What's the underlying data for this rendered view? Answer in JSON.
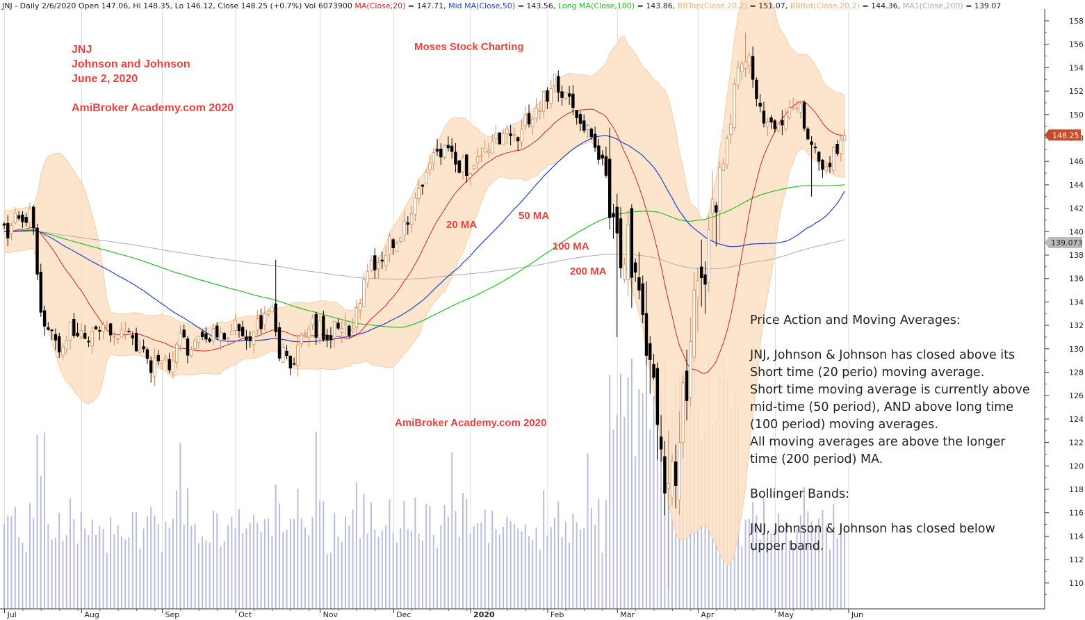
{
  "header": {
    "segments": [
      {
        "text": "JNJ - Daily 2/6/2020 Open 147.06, Hi 148.35, Lo 146.12, Close 148.25 (+0.7%) Vol 6073900 ",
        "color": "#222222"
      },
      {
        "text": "MA(Close,20)",
        "color": "#d42020"
      },
      {
        "text": " = 147.71, ",
        "color": "#222222"
      },
      {
        "text": "Mid MA(Close,50)",
        "color": "#1f3fd0"
      },
      {
        "text": " = 143.56, ",
        "color": "#222222"
      },
      {
        "text": "Long MA(Close,100)",
        "color": "#22c022"
      },
      {
        "text": " = 143.86, ",
        "color": "#222222"
      },
      {
        "text": "BBTop(Close,20,2)",
        "color": "#f0b07a"
      },
      {
        "text": " = 151.07, ",
        "color": "#222222"
      },
      {
        "text": "BBBot(Close,20,2)",
        "color": "#f0b07a"
      },
      {
        "text": " = 144.36, ",
        "color": "#222222"
      },
      {
        "text": "MA1(Close,200)",
        "color": "#aaaaaa"
      },
      {
        "text": " = 139.07",
        "color": "#222222"
      }
    ]
  },
  "annotations": {
    "ticker": "JNJ",
    "company": "Johnson and Johnson",
    "date": "June 2, 2020",
    "brand_top": "AmiBroker Academy.com 2020",
    "moses": "Moses Stock Charting",
    "brand_mid": "AmiBroker Academy.com  2020",
    "label_20": "20 MA",
    "label_50": "50 MA",
    "label_100": "100 MA",
    "label_200": "200 MA"
  },
  "commentary": {
    "lines": [
      "Price Action and Moving Averages:",
      "",
      "JNJ, Johnson & Johnson has closed above its",
      "Short time (20 perio) moving average.",
      "Short time moving average is currently above",
      "mid-time (50 period), AND above long time",
      "(100 period) moving averages.",
      "All moving averages are above the longer",
      "time (200 period) MA.",
      "",
      "Bollinger Bands:",
      "",
      "JNJ, Johnson & Johnson has closed below",
      "upper band."
    ]
  },
  "price_tags": {
    "last_close": "148.25",
    "ma200": "139.073"
  },
  "colors": {
    "ma20": "#d42020",
    "ma50": "#1f3fd0",
    "ma100": "#22c022",
    "ma200": "#aaaaaa",
    "bb_fill": "#fde0c4",
    "bb_edge": "#f5c79a",
    "candle_up": "#d08a5e",
    "candle_down": "#000000",
    "volume": "#b9bddc",
    "tag_last": "#c74a2a",
    "tag_ma200": "#bbbbbb"
  },
  "chart_data": {
    "type": "candlestick",
    "ylim": [
      108.5,
      159
    ],
    "yticks": [
      110,
      112,
      114,
      116,
      118,
      120,
      122,
      124,
      126,
      128,
      130,
      132,
      134,
      136,
      138,
      140,
      142,
      144,
      146,
      148,
      150,
      152,
      154,
      156,
      158
    ],
    "xticks": [
      "Jul",
      "Aug",
      "Sep",
      "Oct",
      "Nov",
      "Dec",
      "2020",
      "Feb",
      "Mar",
      "Apr",
      "May",
      "Jun"
    ],
    "months": [
      {
        "label": "Jul",
        "start": 0,
        "days": 21
      },
      {
        "label": "Aug",
        "start": 21,
        "days": 22
      },
      {
        "label": "Sep",
        "start": 43,
        "days": 20
      },
      {
        "label": "Oct",
        "start": 63,
        "days": 23
      },
      {
        "label": "Nov",
        "start": 86,
        "days": 20
      },
      {
        "label": "Dec",
        "start": 106,
        "days": 21
      },
      {
        "label": "2020",
        "start": 127,
        "days": 21
      },
      {
        "label": "Feb",
        "start": 148,
        "days": 19
      },
      {
        "label": "Mar",
        "start": 167,
        "days": 22
      },
      {
        "label": "Apr",
        "start": 189,
        "days": 21
      },
      {
        "label": "May",
        "start": 210,
        "days": 20
      },
      {
        "label": "Jun",
        "start": 230,
        "days": 0
      }
    ],
    "close_anchors": [
      [
        0,
        140
      ],
      [
        6,
        141.6
      ],
      [
        8,
        140.5
      ],
      [
        9,
        136
      ],
      [
        11,
        132
      ],
      [
        14,
        130
      ],
      [
        18,
        131.5
      ],
      [
        22,
        130.5
      ],
      [
        26,
        131.8
      ],
      [
        30,
        130.8
      ],
      [
        33,
        131.5
      ],
      [
        37,
        130.3
      ],
      [
        40,
        128.5
      ],
      [
        44,
        128.5
      ],
      [
        48,
        130.5
      ],
      [
        52,
        130
      ],
      [
        56,
        131
      ],
      [
        60,
        130.5
      ],
      [
        64,
        132
      ],
      [
        68,
        131
      ],
      [
        72,
        134
      ],
      [
        75,
        130
      ],
      [
        78,
        128
      ],
      [
        81,
        131.5
      ],
      [
        84,
        132
      ],
      [
        88,
        131
      ],
      [
        92,
        132.5
      ],
      [
        95,
        131
      ],
      [
        98,
        136
      ],
      [
        103,
        138
      ],
      [
        108,
        140
      ],
      [
        112,
        143
      ],
      [
        116,
        146
      ],
      [
        120,
        146.5
      ],
      [
        124,
        145.8
      ],
      [
        128,
        145.5
      ],
      [
        132,
        147
      ],
      [
        136,
        148
      ],
      [
        140,
        148.5
      ],
      [
        144,
        150
      ],
      [
        148,
        152
      ],
      [
        150,
        153
      ],
      [
        153,
        151.5
      ],
      [
        156,
        150.5
      ],
      [
        159,
        149
      ],
      [
        161,
        147.5
      ],
      [
        163,
        145.5
      ],
      [
        165,
        142.5
      ],
      [
        167,
        141
      ],
      [
        169,
        139
      ],
      [
        171,
        137
      ],
      [
        173,
        134
      ],
      [
        175,
        130
      ],
      [
        177,
        126
      ],
      [
        179,
        122
      ],
      [
        181,
        117
      ],
      [
        183,
        119
      ],
      [
        185,
        126
      ],
      [
        187,
        130
      ],
      [
        189,
        134
      ],
      [
        191,
        138
      ],
      [
        193,
        140.5
      ],
      [
        195,
        144.5
      ],
      [
        197,
        148
      ],
      [
        199,
        152
      ],
      [
        201,
        154.5
      ],
      [
        203,
        155.5
      ],
      [
        205,
        152
      ],
      [
        207,
        150
      ],
      [
        209,
        149
      ],
      [
        211,
        148.5
      ],
      [
        214,
        150
      ],
      [
        217,
        150.5
      ],
      [
        219,
        148.5
      ],
      [
        221,
        146.5
      ],
      [
        223,
        145
      ],
      [
        225,
        145.5
      ],
      [
        227,
        147.5
      ],
      [
        229,
        148.25
      ]
    ],
    "volume_scale_max": 30000000,
    "last_close": 148.25,
    "ma20_last": 147.71,
    "ma50_last": 143.56,
    "ma100_last": 143.86,
    "bb_top_last": 151.07,
    "bb_bot_last": 144.36,
    "ma200_last": 139.07
  }
}
